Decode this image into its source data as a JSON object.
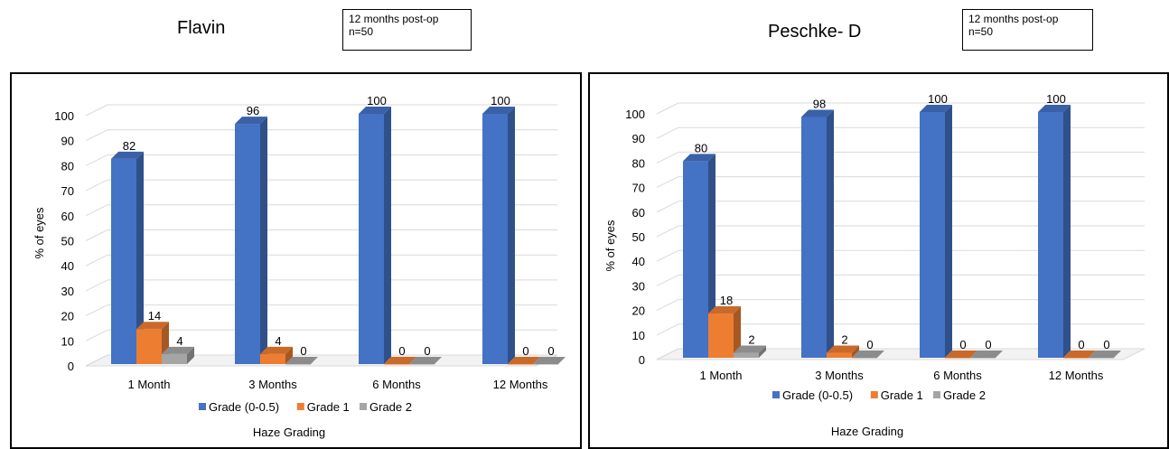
{
  "colors": {
    "grade05": "#4472C4",
    "grade1": "#ED7D31",
    "grade2": "#A5A5A5",
    "grid": "#D9D9D9"
  },
  "panels": [
    {
      "title": "Flavin",
      "note": {
        "line1": "12 months post-op",
        "line2": "n=50"
      }
    },
    {
      "title": "Peschke- D",
      "note": {
        "line1": "12 months post-op",
        "line2": "n=50"
      }
    }
  ],
  "chart_data": [
    {
      "type": "bar",
      "title": "Flavin",
      "xlabel": "Haze Grading",
      "ylabel": "% of eyes",
      "ylim": [
        0,
        100
      ],
      "yticks": [
        "0",
        "10",
        "20",
        "30",
        "40",
        "50",
        "60",
        "70",
        "80",
        "90",
        "100"
      ],
      "categories": [
        "1 Month",
        "3 Months",
        "6 Months",
        "12 Months"
      ],
      "series": [
        {
          "name": "Grade (0-0.5)",
          "values": [
            82,
            96,
            100,
            100
          ]
        },
        {
          "name": "Grade 1",
          "values": [
            14,
            4,
            0,
            0
          ]
        },
        {
          "name": "Grade 2",
          "values": [
            4,
            0,
            0,
            0
          ]
        }
      ],
      "legend": "bottom",
      "grid": true
    },
    {
      "type": "bar",
      "title": "Peschke- D",
      "xlabel": "Haze Grading",
      "ylabel": "% of eyes",
      "ylim": [
        0,
        100
      ],
      "yticks": [
        "0",
        "10",
        "20",
        "30",
        "40",
        "50",
        "60",
        "70",
        "80",
        "90",
        "100"
      ],
      "categories": [
        "1 Month",
        "3 Months",
        "6 Months",
        "12 Months"
      ],
      "series": [
        {
          "name": "Grade (0-0.5)",
          "values": [
            80,
            98,
            100,
            100
          ]
        },
        {
          "name": "Grade 1",
          "values": [
            18,
            2,
            0,
            0
          ]
        },
        {
          "name": "Grade 2",
          "values": [
            2,
            0,
            0,
            0
          ]
        }
      ],
      "legend": "bottom",
      "grid": true
    }
  ]
}
